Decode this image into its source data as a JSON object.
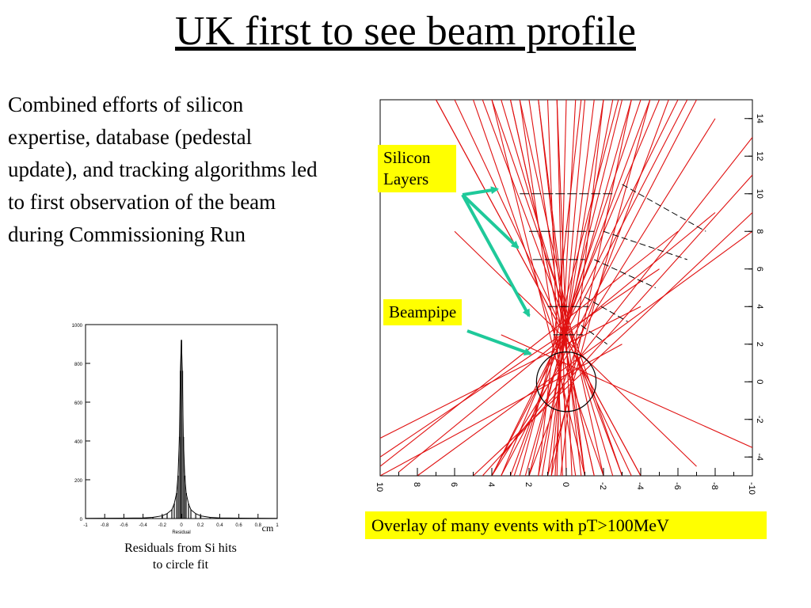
{
  "title": "UK first to see beam profile",
  "intro_text": "Combined efforts of silicon expertise, database (pedestal update), and tracking algorithms led to first observation of the beam during Commissioning Run",
  "labels": {
    "silicon_line1": "Silicon",
    "silicon_line2": "Layers",
    "beampipe": "Beampipe",
    "overlay_caption": "Overlay of many events with pT>100MeV"
  },
  "histogram": {
    "caption_line1": "Residuals from Si hits",
    "caption_line2": "to circle fit",
    "unit": "cm",
    "xlabel": "Residual"
  },
  "colors": {
    "accent_box": "#ffff00",
    "arrow": "#1fc99a",
    "tracks": "#e01010"
  },
  "chart_data": [
    {
      "type": "bar",
      "xlabel": "Residual",
      "xlim": [
        -1,
        1
      ],
      "ylim": [
        0,
        1000
      ],
      "xticks": [
        "-1",
        "-0.8",
        "-0.6",
        "-0.4",
        "-0.2",
        "0",
        "0.2",
        "0.4",
        "0.6",
        "0.8",
        "1"
      ],
      "yticks": [
        "0",
        "200",
        "400",
        "600",
        "800",
        "1000"
      ],
      "x": [
        -0.4,
        -0.3,
        -0.2,
        -0.15,
        -0.1,
        -0.075,
        -0.05,
        -0.035,
        -0.02,
        -0.01,
        0,
        0.01,
        0.02,
        0.035,
        0.05,
        0.075,
        0.1,
        0.15,
        0.2,
        0.3,
        0.4
      ],
      "values": [
        3,
        6,
        14,
        25,
        45,
        75,
        130,
        220,
        420,
        760,
        920,
        760,
        420,
        220,
        130,
        75,
        45,
        25,
        14,
        6,
        3
      ]
    },
    {
      "type": "scatter",
      "xlim": [
        10,
        -10
      ],
      "ylim": [
        -5,
        15
      ],
      "xticks": [
        "10",
        "8",
        "6",
        "4",
        "2",
        "0",
        "-2",
        "-4",
        "-6",
        "-8",
        "-10"
      ],
      "yticks": [
        "-4",
        "-2",
        "0",
        "2",
        "4",
        "6",
        "8",
        "10",
        "12",
        "14"
      ],
      "beampipe": {
        "cx": 0,
        "cy": 0,
        "r": 1.6
      },
      "silicon_layers": [
        {
          "y": 10,
          "x1": 2.5,
          "x2": -2.5
        },
        {
          "y": 8,
          "x1": 2.0,
          "x2": -1.5
        },
        {
          "y": 6.5,
          "x1": 1.8,
          "x2": -1.0
        },
        {
          "y": 4,
          "x1": 1.0,
          "x2": -1.2
        },
        {
          "y": 2.5,
          "x1": 0.7,
          "x2": -0.9
        }
      ],
      "silicon_layers_dashed": [
        {
          "x1": -3.0,
          "y1": 10.5,
          "x2": -7.5,
          "y2": 8.0
        },
        {
          "x1": -2.0,
          "y1": 8.0,
          "x2": -6.5,
          "y2": 6.5
        },
        {
          "x1": -1.5,
          "y1": 6.5,
          "x2": -4.8,
          "y2": 5.0
        },
        {
          "x1": -1.0,
          "y1": 4.5,
          "x2": -3.3,
          "y2": 3.2
        },
        {
          "x1": -0.8,
          "y1": 3.0,
          "x2": -2.2,
          "y2": 2.0
        }
      ],
      "tracks": [
        {
          "x1": 10,
          "y1": -4.5,
          "x2": -6,
          "y2": 8
        },
        {
          "x1": 10,
          "y1": -4.0,
          "x2": -5,
          "y2": 6
        },
        {
          "x1": 9,
          "y1": -4.8,
          "x2": -8,
          "y2": 9
        },
        {
          "x1": 10,
          "y1": -3.0,
          "x2": -4,
          "y2": 4
        },
        {
          "x1": 8,
          "y1": -5.0,
          "x2": -10,
          "y2": 8
        },
        {
          "x1": 3,
          "y1": 15,
          "x2": -1.5,
          "y2": -5
        },
        {
          "x1": 4,
          "y1": 15,
          "x2": -1.0,
          "y2": -5
        },
        {
          "x1": 5,
          "y1": 15,
          "x2": -2.0,
          "y2": -5
        },
        {
          "x1": 2.5,
          "y1": 15,
          "x2": -0.5,
          "y2": -5
        },
        {
          "x1": 2,
          "y1": 15,
          "x2": -1.0,
          "y2": -5
        },
        {
          "x1": 1.5,
          "y1": 15,
          "x2": -0.8,
          "y2": -5
        },
        {
          "x1": 1,
          "y1": 15,
          "x2": 0.2,
          "y2": -5
        },
        {
          "x1": 0.5,
          "y1": 15,
          "x2": 0.0,
          "y2": -5
        },
        {
          "x1": 0,
          "y1": 15,
          "x2": 0.5,
          "y2": -5
        },
        {
          "x1": -0.5,
          "y1": 15,
          "x2": 0.6,
          "y2": -5
        },
        {
          "x1": -1,
          "y1": 15,
          "x2": 0.8,
          "y2": -5
        },
        {
          "x1": -1.5,
          "y1": 15,
          "x2": 1.0,
          "y2": -5
        },
        {
          "x1": -2,
          "y1": 15,
          "x2": 1.3,
          "y2": -5
        },
        {
          "x1": -2.5,
          "y1": 15,
          "x2": 1.5,
          "y2": -5
        },
        {
          "x1": -3,
          "y1": 15,
          "x2": 2.0,
          "y2": -5
        },
        {
          "x1": -3.5,
          "y1": 15,
          "x2": 2.2,
          "y2": -5
        },
        {
          "x1": -4,
          "y1": 15,
          "x2": 2.8,
          "y2": -5
        },
        {
          "x1": -4.5,
          "y1": 15,
          "x2": 3.0,
          "y2": -5
        },
        {
          "x1": -5,
          "y1": 15,
          "x2": 3.5,
          "y2": -5
        },
        {
          "x1": -6,
          "y1": 15,
          "x2": 4.0,
          "y2": -5
        },
        {
          "x1": -7,
          "y1": 15,
          "x2": 3.5,
          "y2": -5
        },
        {
          "x1": 3.5,
          "y1": 15,
          "x2": -2.5,
          "y2": -5
        },
        {
          "x1": 4.5,
          "y1": 15,
          "x2": -3.0,
          "y2": -5
        },
        {
          "x1": 6,
          "y1": 15,
          "x2": -3.5,
          "y2": -5
        },
        {
          "x1": 7,
          "y1": 15,
          "x2": -4.0,
          "y2": -5
        },
        {
          "x1": -8,
          "y1": 14,
          "x2": 4.0,
          "y2": -5
        },
        {
          "x1": -10,
          "y1": 13,
          "x2": 3.5,
          "y2": -4
        },
        {
          "x1": -10,
          "y1": 11,
          "x2": 4.5,
          "y2": -5
        },
        {
          "x1": -10,
          "y1": 9,
          "x2": 5.0,
          "y2": -5
        },
        {
          "x1": 1,
          "y1": -5,
          "x2": -4.5,
          "y2": 15
        },
        {
          "x1": 2,
          "y1": -5,
          "x2": -5.5,
          "y2": 15
        },
        {
          "x1": -1,
          "y1": -5,
          "x2": 1.5,
          "y2": 15
        },
        {
          "x1": -2,
          "y1": -5,
          "x2": 2.5,
          "y2": 15
        },
        {
          "x1": -3,
          "y1": -5,
          "x2": 4.0,
          "y2": 15
        },
        {
          "x1": -7,
          "y1": -4.5,
          "x2": 6,
          "y2": 8
        },
        {
          "x1": -10,
          "y1": -3.5,
          "x2": 3.5,
          "y2": 2.5
        },
        {
          "x1": 10,
          "y1": -5,
          "x2": -3,
          "y2": 2
        },
        {
          "x1": 0.3,
          "y1": -5,
          "x2": -2.0,
          "y2": 15
        },
        {
          "x1": -0.3,
          "y1": -5,
          "x2": 0.5,
          "y2": 15
        },
        {
          "x1": 0.8,
          "y1": -5,
          "x2": -3.5,
          "y2": 15
        },
        {
          "x1": 1.5,
          "y1": -5,
          "x2": -0.8,
          "y2": 15
        },
        {
          "x1": -1.5,
          "y1": -5,
          "x2": 3.0,
          "y2": 15
        },
        {
          "x1": 2.5,
          "y1": -5,
          "x2": -2.8,
          "y2": 15
        },
        {
          "x1": 4,
          "y1": -5,
          "x2": -6.5,
          "y2": 15
        },
        {
          "x1": -4,
          "y1": -5,
          "x2": 7.0,
          "y2": 15
        }
      ]
    }
  ]
}
